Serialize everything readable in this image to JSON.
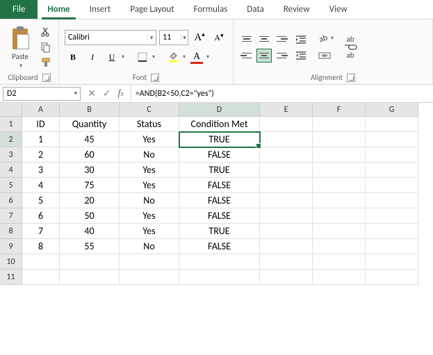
{
  "tabs": {
    "file": "File",
    "items": [
      "Home",
      "Insert",
      "Page Layout",
      "Formulas",
      "Data",
      "Review",
      "View"
    ],
    "active_index": 0
  },
  "ribbon": {
    "clipboard": {
      "label": "Clipboard",
      "paste": "Paste"
    },
    "font": {
      "label": "Font",
      "name": "Calibri",
      "size": "11",
      "bold": "B",
      "italic": "I",
      "underline": "U"
    },
    "alignment": {
      "label": "Alignment",
      "wrap_a": "ab",
      "wrap_b": "ab"
    }
  },
  "namebox": "D2",
  "formula": "=AND(B2<50,C2=\"yes\")",
  "columns": [
    "A",
    "B",
    "C",
    "D",
    "E",
    "F",
    "G"
  ],
  "row_headers": [
    "1",
    "2",
    "3",
    "4",
    "5",
    "6",
    "7",
    "8",
    "9",
    "10",
    "11"
  ],
  "headers": {
    "A": "ID",
    "B": "Quantity",
    "C": "Status",
    "D": "Condition Met"
  },
  "data": [
    {
      "id": "1",
      "qty": "45",
      "status": "Yes",
      "cond": "TRUE"
    },
    {
      "id": "2",
      "qty": "60",
      "status": "No",
      "cond": "FALSE"
    },
    {
      "id": "3",
      "qty": "30",
      "status": "Yes",
      "cond": "TRUE"
    },
    {
      "id": "4",
      "qty": "75",
      "status": "Yes",
      "cond": "FALSE"
    },
    {
      "id": "5",
      "qty": "20",
      "status": "No",
      "cond": "FALSE"
    },
    {
      "id": "6",
      "qty": "50",
      "status": "Yes",
      "cond": "FALSE"
    },
    {
      "id": "7",
      "qty": "40",
      "status": "Yes",
      "cond": "TRUE"
    },
    {
      "id": "8",
      "qty": "55",
      "status": "No",
      "cond": "FALSE"
    }
  ],
  "active_cell": {
    "row": 2,
    "col": "D"
  },
  "colors": {
    "accent": "#217346"
  }
}
